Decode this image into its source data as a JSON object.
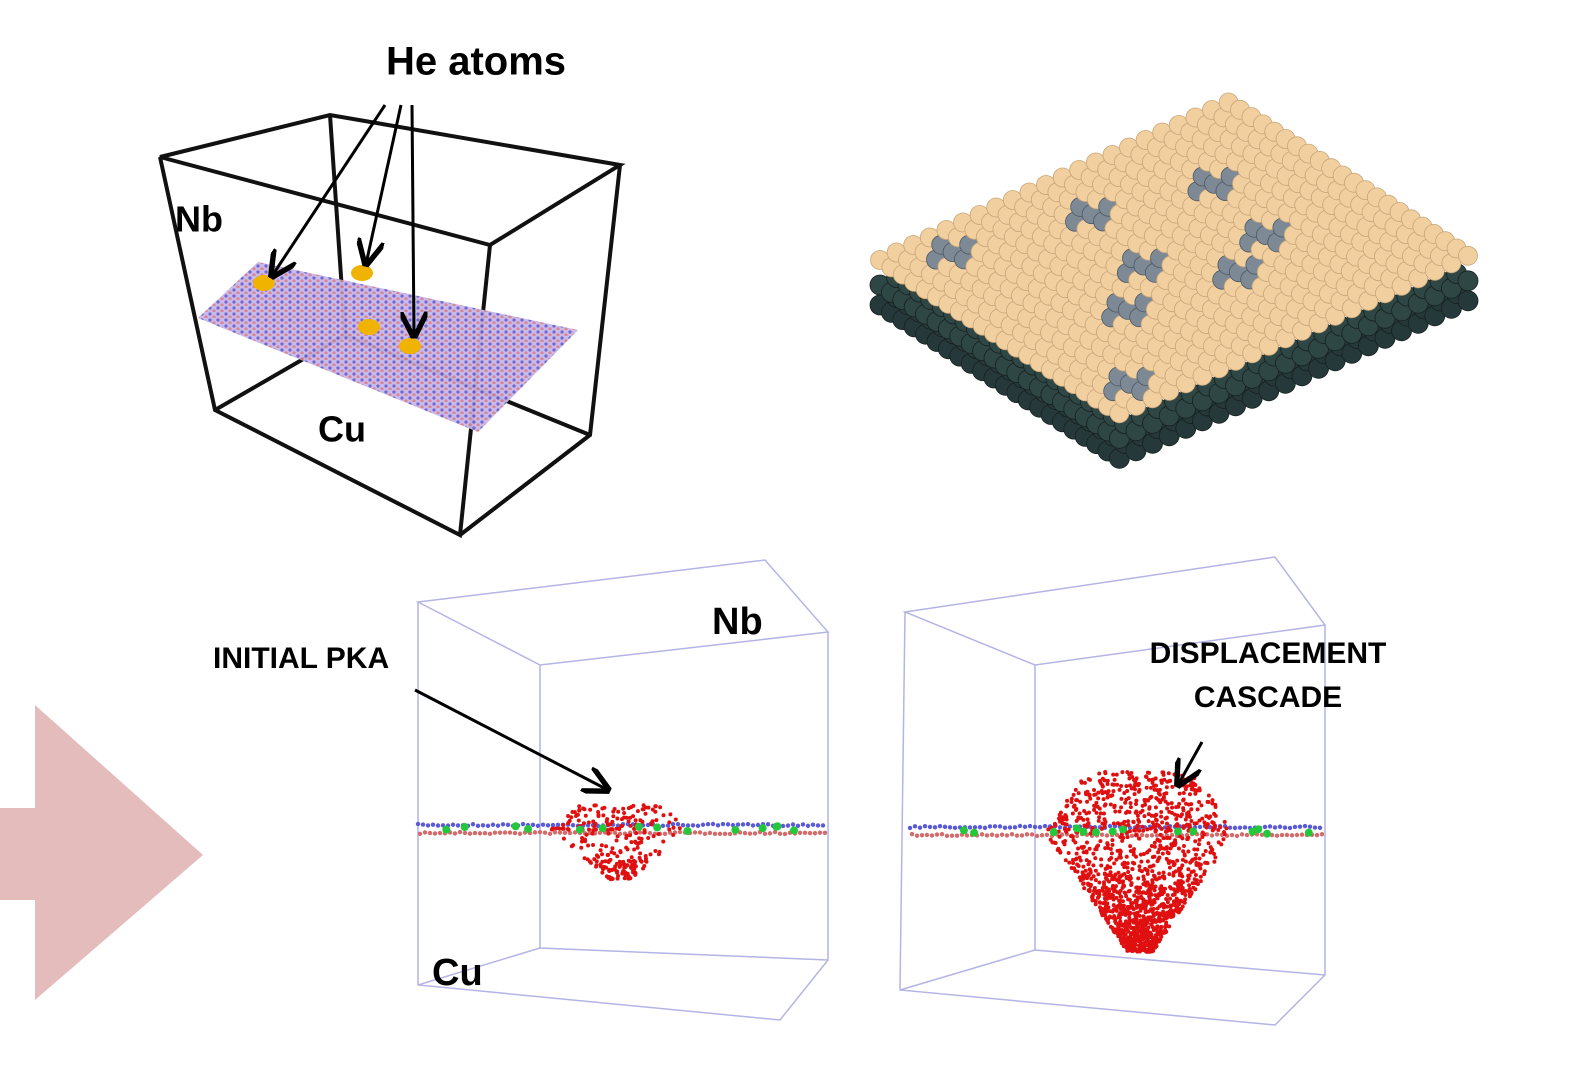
{
  "panels": {
    "top_left": {
      "he_label": "He atoms",
      "nb_label": "Nb",
      "cu_label": "Cu"
    },
    "bottom_left": {
      "pka_label": "INITIAL PKA",
      "nb_label": "Nb",
      "cu_label": "Cu"
    },
    "bottom_right": {
      "cascade_label_lines": [
        "DISPLACEMENT",
        "CASCADE"
      ]
    }
  }
}
